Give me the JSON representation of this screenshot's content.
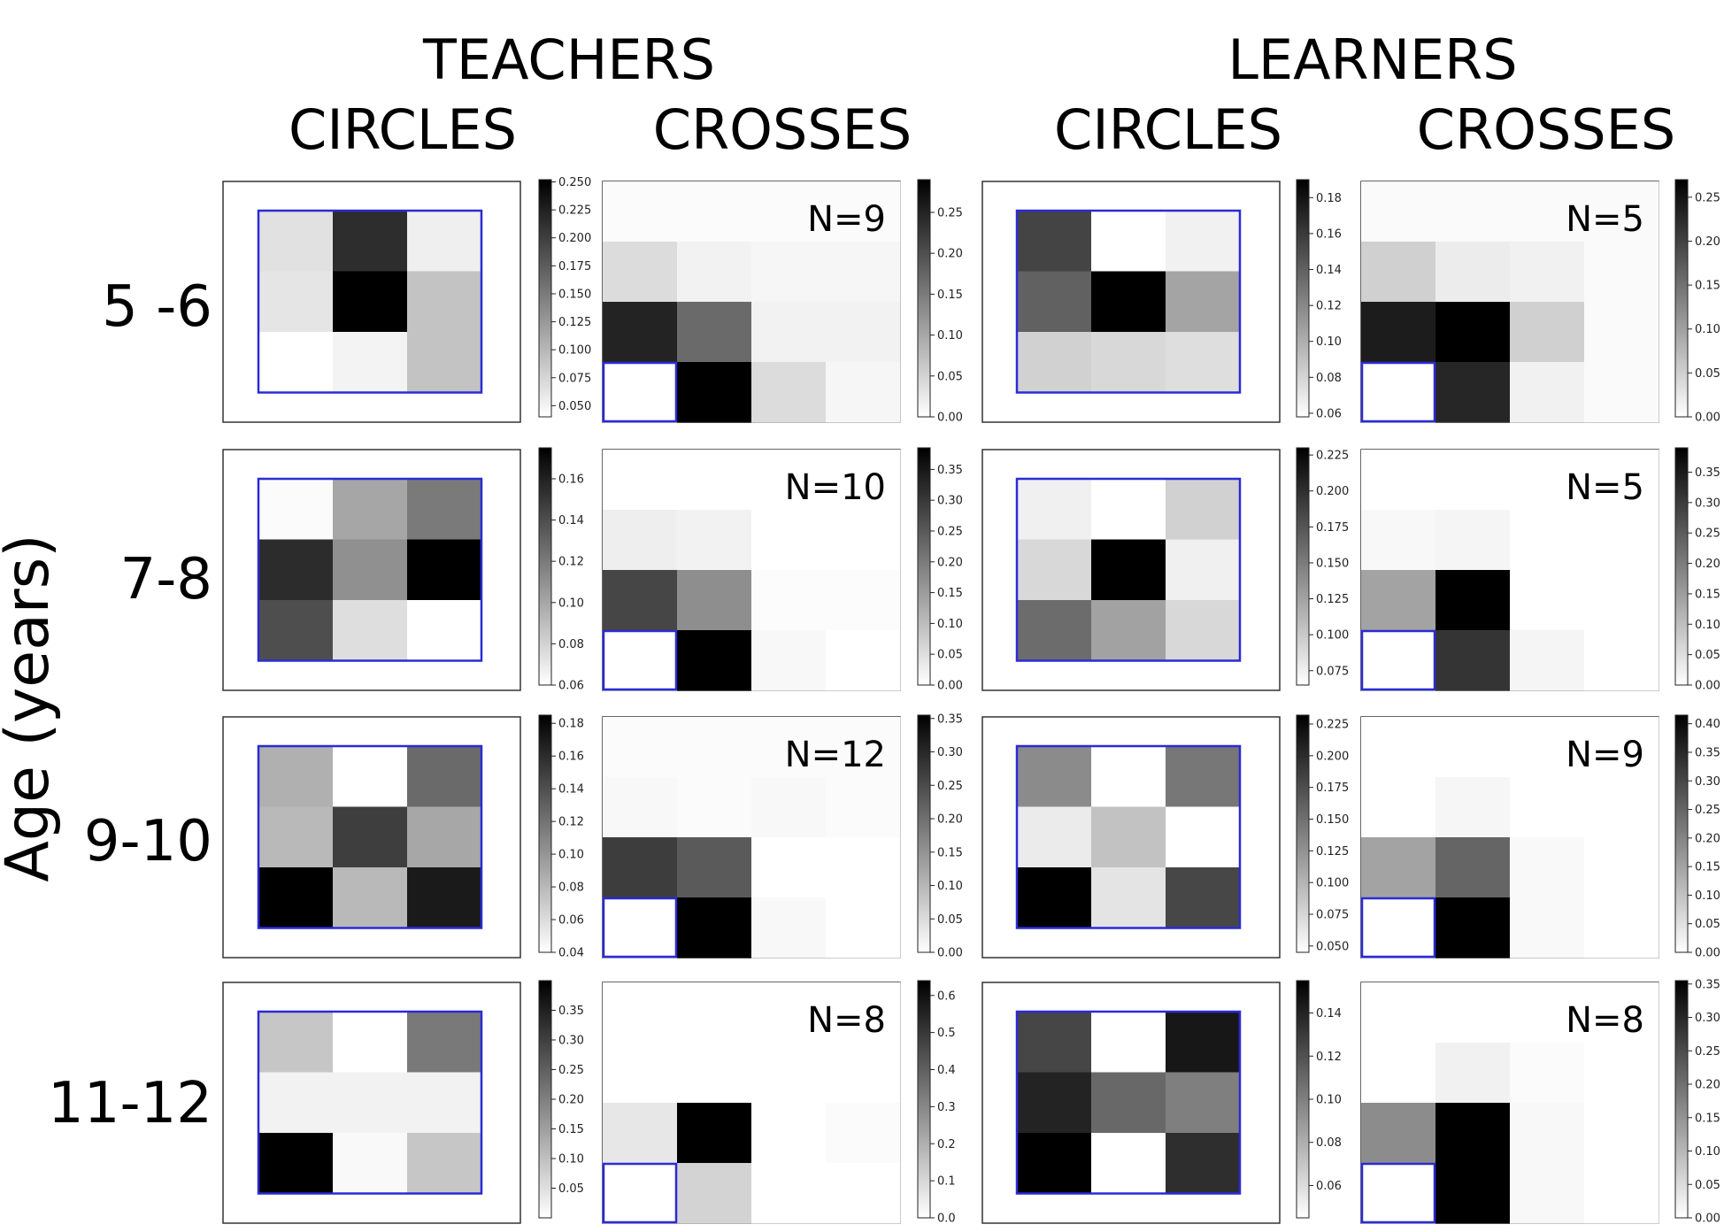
{
  "header": {
    "groups": [
      "TEACHERS",
      "LEARNERS"
    ],
    "columns": [
      "CIRCLES",
      "CROSSES",
      "CIRCLES",
      "CROSSES"
    ]
  },
  "y_axis_label": "Age (years)",
  "row_labels": [
    "5 -6",
    "7-8",
    "9-10",
    "11-12"
  ],
  "colors": {
    "highlight": "#2b2bd6",
    "frame": "#333333",
    "cmap_low": "#ffffff",
    "cmap_high": "#000000"
  },
  "chart_data": [
    {
      "type": "heatmap",
      "group": "TEACHERS",
      "column": "CIRCLES",
      "row": "5 -6",
      "values": [
        [
          0.065,
          0.215,
          0.053
        ],
        [
          0.062,
          0.252,
          0.09
        ],
        [
          0.04,
          0.05,
          0.09
        ]
      ],
      "colorbar": {
        "vmin": 0.04,
        "vmax": 0.252,
        "ticks": [
          "0.050",
          "0.075",
          "0.100",
          "0.125",
          "0.150",
          "0.175",
          "0.200",
          "0.225",
          "0.250"
        ]
      },
      "highlight": "all"
    },
    {
      "type": "heatmap",
      "group": "TEACHERS",
      "column": "CROSSES",
      "row": "5 -6",
      "values": [
        [
          0.005,
          0.005,
          0.005,
          0.005
        ],
        [
          0.04,
          0.015,
          0.01,
          0.01
        ],
        [
          0.25,
          0.17,
          0.015,
          0.015
        ],
        [
          0.0,
          0.29,
          0.04,
          0.01
        ]
      ],
      "colorbar": {
        "vmin": 0.0,
        "vmax": 0.29,
        "ticks": [
          "0.00",
          "0.05",
          "0.10",
          "0.15",
          "0.20",
          "0.25"
        ]
      },
      "annotation": "N=9",
      "highlight": [
        3,
        0
      ]
    },
    {
      "type": "heatmap",
      "group": "LEARNERS",
      "column": "CIRCLES",
      "row": "5 -6",
      "values": [
        [
          0.155,
          0.058,
          0.065
        ],
        [
          0.14,
          0.19,
          0.105
        ],
        [
          0.082,
          0.078,
          0.075
        ]
      ],
      "colorbar": {
        "vmin": 0.058,
        "vmax": 0.19,
        "ticks": [
          "0.06",
          "0.08",
          "0.10",
          "0.12",
          "0.14",
          "0.16",
          "0.18"
        ]
      },
      "highlight": "all"
    },
    {
      "type": "heatmap",
      "group": "LEARNERS",
      "column": "CROSSES",
      "row": "5 -6",
      "values": [
        [
          0.005,
          0.005,
          0.005,
          0.005
        ],
        [
          0.05,
          0.02,
          0.015,
          0.005
        ],
        [
          0.24,
          0.27,
          0.05,
          0.005
        ],
        [
          0.0,
          0.23,
          0.015,
          0.005
        ]
      ],
      "colorbar": {
        "vmin": 0.0,
        "vmax": 0.27,
        "ticks": [
          "0.00",
          "0.05",
          "0.10",
          "0.15",
          "0.20",
          "0.25"
        ]
      },
      "annotation": "N=5",
      "highlight": [
        3,
        0
      ]
    },
    {
      "type": "heatmap",
      "group": "TEACHERS",
      "column": "CIRCLES",
      "row": "7-8",
      "values": [
        [
          0.062,
          0.1,
          0.12
        ],
        [
          0.155,
          0.11,
          0.175
        ],
        [
          0.14,
          0.075,
          0.06
        ]
      ],
      "colorbar": {
        "vmin": 0.06,
        "vmax": 0.175,
        "ticks": [
          "0.06",
          "0.08",
          "0.10",
          "0.12",
          "0.14",
          "0.16"
        ]
      },
      "highlight": "all"
    },
    {
      "type": "heatmap",
      "group": "TEACHERS",
      "column": "CROSSES",
      "row": "7-8",
      "values": [
        [
          0.0,
          0.0,
          0.0,
          0.0
        ],
        [
          0.025,
          0.02,
          0.0,
          0.0
        ],
        [
          0.28,
          0.17,
          0.005,
          0.005
        ],
        [
          0.0,
          0.385,
          0.01,
          0.0
        ]
      ],
      "colorbar": {
        "vmin": 0.0,
        "vmax": 0.385,
        "ticks": [
          "0.00",
          "0.05",
          "0.10",
          "0.15",
          "0.20",
          "0.25",
          "0.30",
          "0.35"
        ]
      },
      "annotation": "N=10",
      "highlight": [
        3,
        0
      ]
    },
    {
      "type": "heatmap",
      "group": "LEARNERS",
      "column": "CIRCLES",
      "row": "7-8",
      "values": [
        [
          0.075,
          0.065,
          0.095
        ],
        [
          0.09,
          0.23,
          0.075
        ],
        [
          0.16,
          0.125,
          0.09
        ]
      ],
      "colorbar": {
        "vmin": 0.065,
        "vmax": 0.23,
        "ticks": [
          "0.075",
          "0.100",
          "0.125",
          "0.150",
          "0.175",
          "0.200",
          "0.225"
        ]
      },
      "highlight": "all"
    },
    {
      "type": "heatmap",
      "group": "LEARNERS",
      "column": "CROSSES",
      "row": "7-8",
      "values": [
        [
          0.0,
          0.0,
          0.0,
          0.0
        ],
        [
          0.01,
          0.015,
          0.0,
          0.0
        ],
        [
          0.14,
          0.39,
          0.0,
          0.0
        ],
        [
          0.0,
          0.31,
          0.015,
          0.0
        ]
      ],
      "colorbar": {
        "vmin": 0.0,
        "vmax": 0.39,
        "ticks": [
          "0.00",
          "0.05",
          "0.10",
          "0.15",
          "0.20",
          "0.25",
          "0.30",
          "0.35"
        ]
      },
      "annotation": "N=5",
      "highlight": [
        3,
        0
      ]
    },
    {
      "type": "heatmap",
      "group": "TEACHERS",
      "column": "CIRCLES",
      "row": "9-10",
      "values": [
        [
          0.085,
          0.04,
          0.125
        ],
        [
          0.08,
          0.15,
          0.09
        ],
        [
          0.185,
          0.08,
          0.17
        ]
      ],
      "colorbar": {
        "vmin": 0.04,
        "vmax": 0.185,
        "ticks": [
          "0.04",
          "0.06",
          "0.08",
          "0.10",
          "0.12",
          "0.14",
          "0.16",
          "0.18"
        ]
      },
      "highlight": "all"
    },
    {
      "type": "heatmap",
      "group": "TEACHERS",
      "column": "CROSSES",
      "row": "9-10",
      "values": [
        [
          0.005,
          0.005,
          0.005,
          0.005
        ],
        [
          0.01,
          0.005,
          0.01,
          0.005
        ],
        [
          0.27,
          0.23,
          0.0,
          0.0
        ],
        [
          0.0,
          0.355,
          0.01,
          0.0
        ]
      ],
      "colorbar": {
        "vmin": 0.0,
        "vmax": 0.355,
        "ticks": [
          "0.00",
          "0.05",
          "0.10",
          "0.15",
          "0.20",
          "0.25",
          "0.30",
          "0.35"
        ]
      },
      "annotation": "N=12",
      "highlight": [
        3,
        0
      ]
    },
    {
      "type": "heatmap",
      "group": "LEARNERS",
      "column": "CIRCLES",
      "row": "9-10",
      "values": [
        [
          0.13,
          0.045,
          0.145
        ],
        [
          0.06,
          0.09,
          0.045
        ],
        [
          0.232,
          0.065,
          0.18
        ]
      ],
      "colorbar": {
        "vmin": 0.045,
        "vmax": 0.232,
        "ticks": [
          "0.050",
          "0.075",
          "0.100",
          "0.125",
          "0.150",
          "0.175",
          "0.200",
          "0.225"
        ]
      },
      "highlight": "all"
    },
    {
      "type": "heatmap",
      "group": "LEARNERS",
      "column": "CROSSES",
      "row": "9-10",
      "values": [
        [
          0.0,
          0.0,
          0.0,
          0.0
        ],
        [
          0.0,
          0.015,
          0.0,
          0.0
        ],
        [
          0.15,
          0.25,
          0.01,
          0.0
        ],
        [
          0.0,
          0.415,
          0.01,
          0.0
        ]
      ],
      "colorbar": {
        "vmin": 0.0,
        "vmax": 0.415,
        "ticks": [
          "0.00",
          "0.05",
          "0.10",
          "0.15",
          "0.20",
          "0.25",
          "0.30",
          "0.35",
          "0.40"
        ]
      },
      "annotation": "N=9",
      "highlight": [
        3,
        0
      ]
    },
    {
      "type": "heatmap",
      "group": "TEACHERS",
      "column": "CIRCLES",
      "row": "11-12",
      "values": [
        [
          0.09,
          0.0,
          0.21
        ],
        [
          0.02,
          0.02,
          0.02
        ],
        [
          0.4,
          0.01,
          0.09
        ]
      ],
      "colorbar": {
        "vmin": 0.0,
        "vmax": 0.4,
        "ticks": [
          "0.05",
          "0.10",
          "0.15",
          "0.20",
          "0.25",
          "0.30",
          "0.35"
        ]
      },
      "highlight": "all"
    },
    {
      "type": "heatmap",
      "group": "TEACHERS",
      "column": "CROSSES",
      "row": "11-12",
      "values": [
        [
          0.0,
          0.0,
          0.0,
          0.0
        ],
        [
          0.0,
          0.0,
          0.0,
          0.0
        ],
        [
          0.06,
          0.64,
          0.0,
          0.01
        ],
        [
          0.0,
          0.11,
          0.0,
          0.0
        ]
      ],
      "colorbar": {
        "vmin": 0.0,
        "vmax": 0.64,
        "ticks": [
          "0.0",
          "0.1",
          "0.2",
          "0.3",
          "0.4",
          "0.5",
          "0.6"
        ]
      },
      "annotation": "N=8",
      "highlight": [
        3,
        0
      ]
    },
    {
      "type": "heatmap",
      "group": "LEARNERS",
      "column": "CIRCLES",
      "row": "11-12",
      "values": [
        [
          0.125,
          0.045,
          0.145
        ],
        [
          0.14,
          0.11,
          0.1
        ],
        [
          0.155,
          0.045,
          0.135
        ]
      ],
      "colorbar": {
        "vmin": 0.045,
        "vmax": 0.155,
        "ticks": [
          "0.06",
          "0.08",
          "0.10",
          "0.12",
          "0.14"
        ]
      },
      "highlight": "all"
    },
    {
      "type": "heatmap",
      "group": "LEARNERS",
      "column": "CROSSES",
      "row": "11-12",
      "values": [
        [
          0.0,
          0.0,
          0.0,
          0.0
        ],
        [
          0.0,
          0.02,
          0.005,
          0.0
        ],
        [
          0.16,
          0.355,
          0.01,
          0.0
        ],
        [
          0.0,
          0.355,
          0.01,
          0.0
        ]
      ],
      "colorbar": {
        "vmin": 0.0,
        "vmax": 0.355,
        "ticks": [
          "0.00",
          "0.05",
          "0.10",
          "0.15",
          "0.20",
          "0.25",
          "0.30",
          "0.35"
        ]
      },
      "annotation": "N=8",
      "highlight": [
        3,
        0
      ]
    }
  ]
}
